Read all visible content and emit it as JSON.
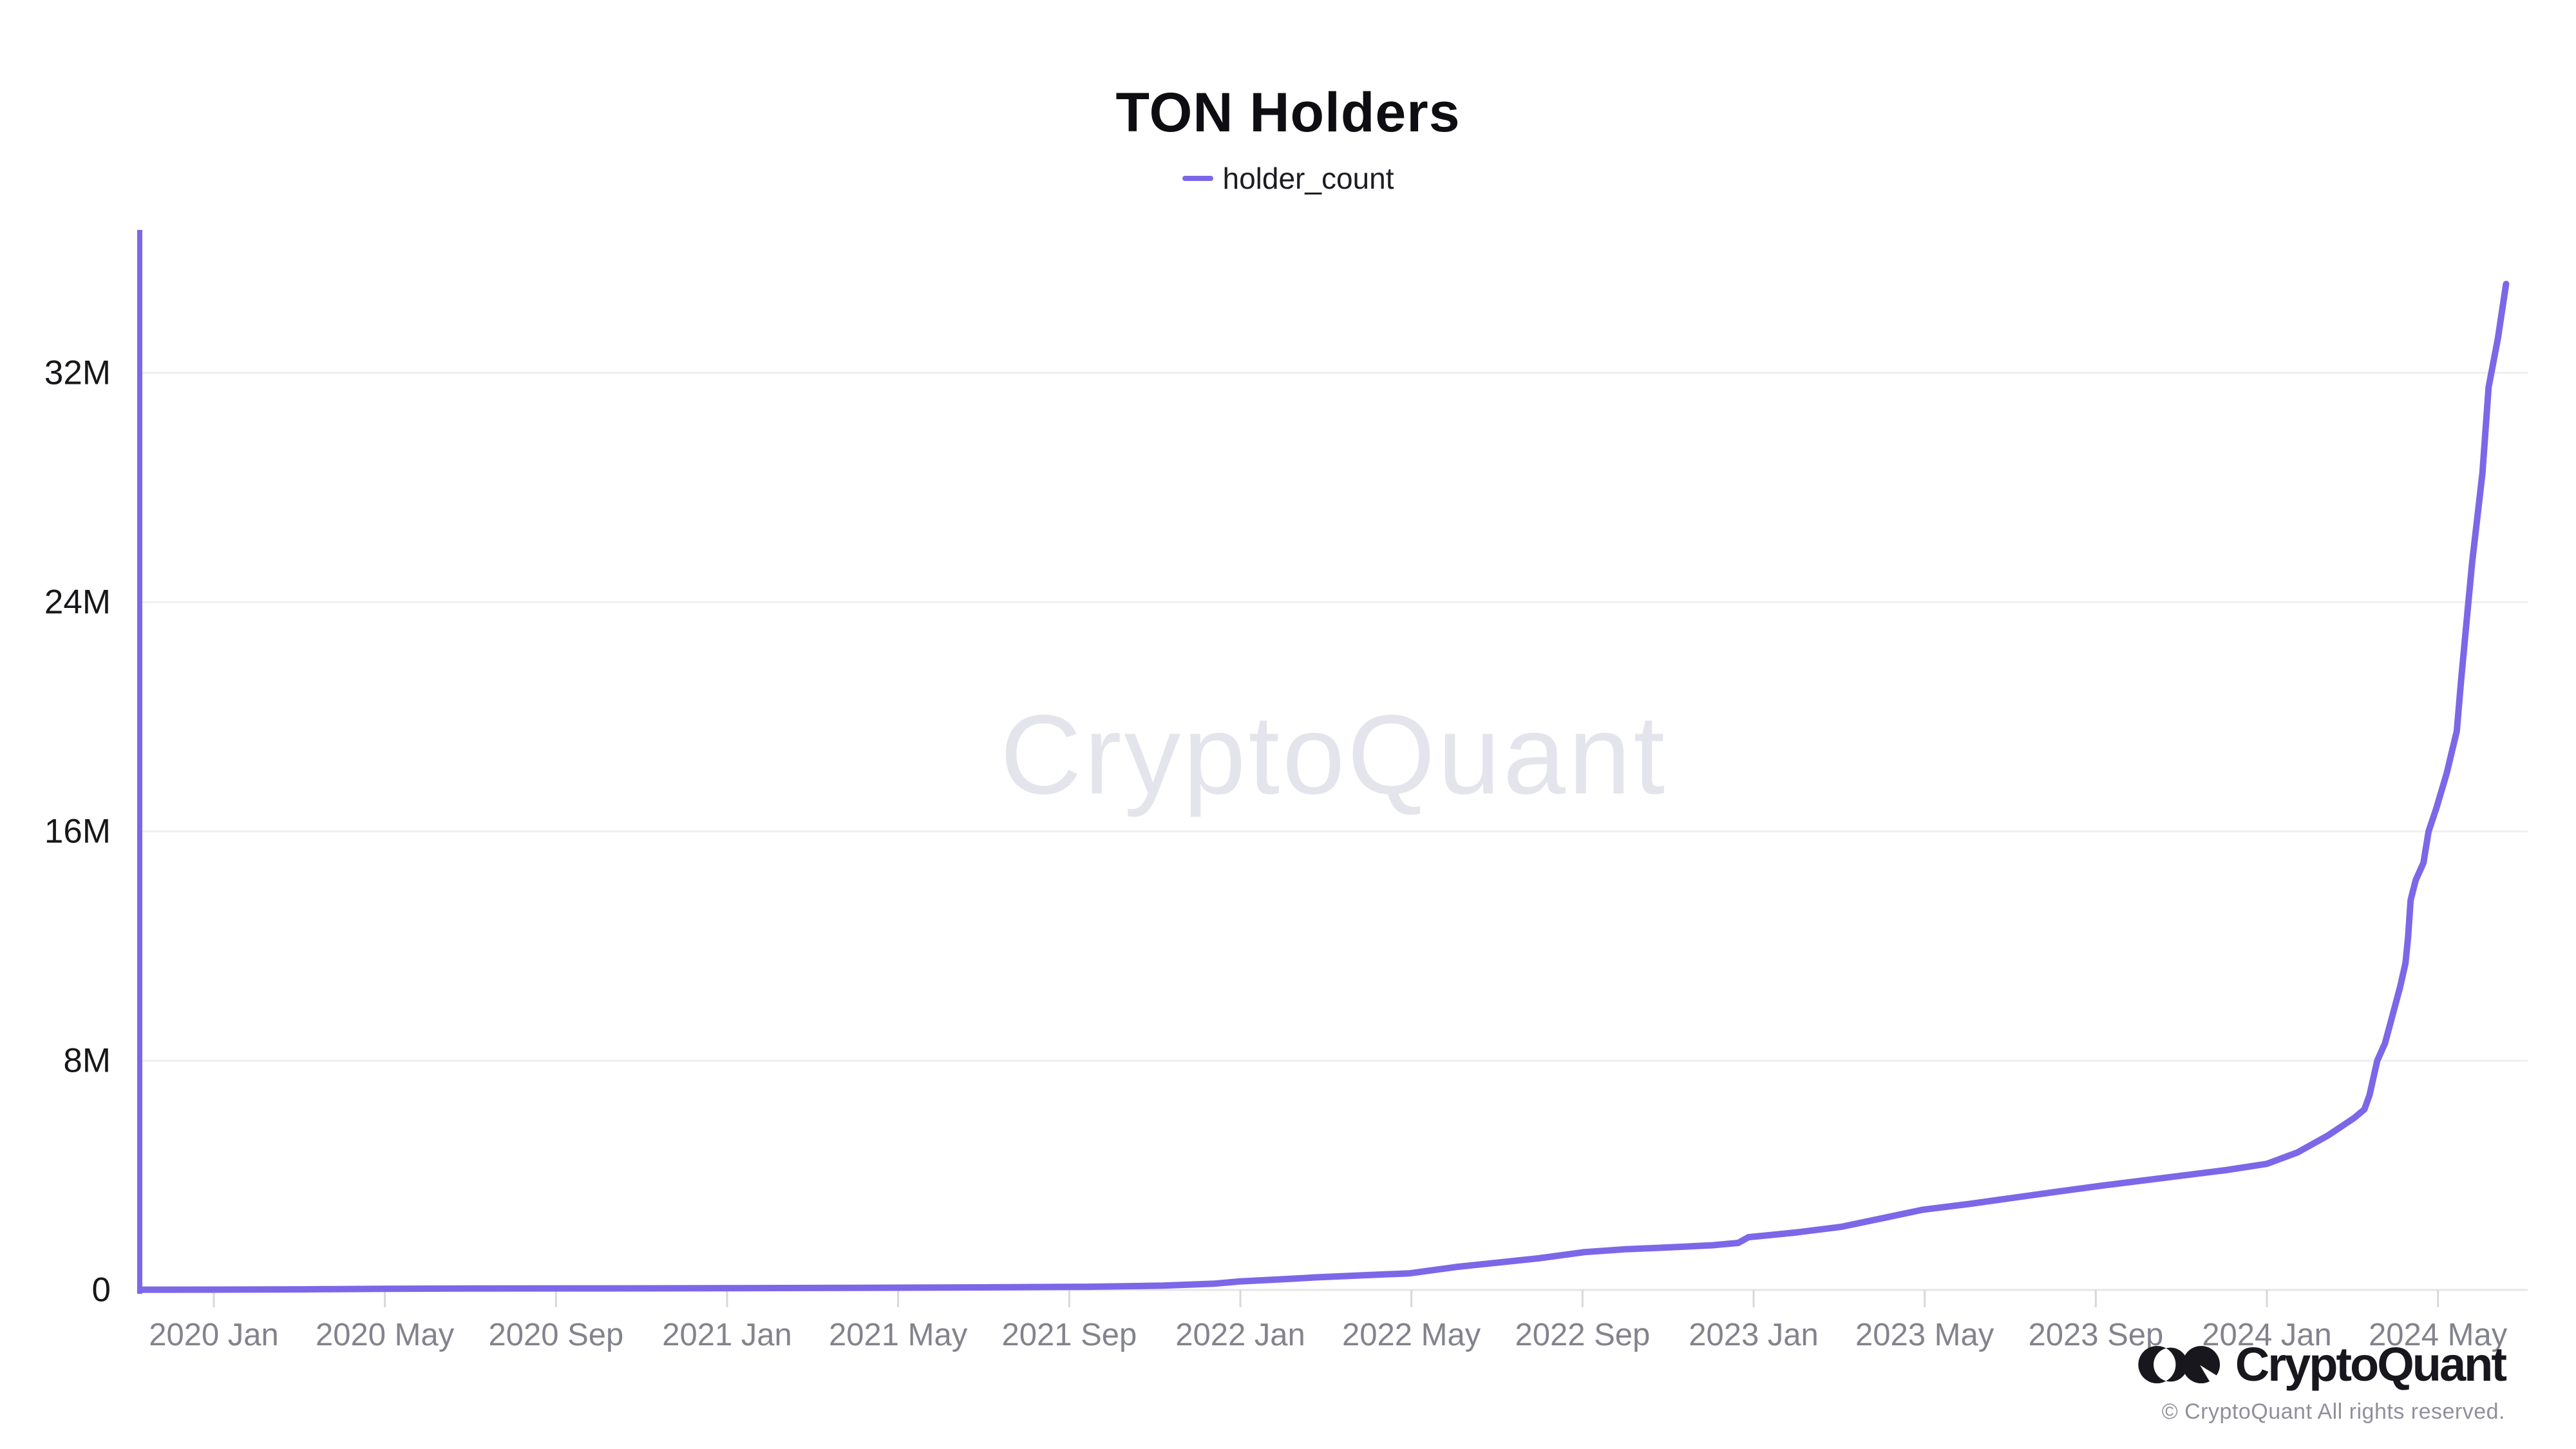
{
  "header": {
    "title": "TON Holders",
    "legend_label": "holder_count"
  },
  "watermark": {
    "text": "CryptoQuant"
  },
  "footer": {
    "brand": "CryptoQuant",
    "copyright": "© CryptoQuant All rights reserved."
  },
  "colors": {
    "series": "#7c67e8",
    "y_axis_line": "#7c67e8",
    "gridline": "#efeff2",
    "baseline": "#e6e6ea",
    "tick": "#d8d8dc",
    "x_label": "#83838d",
    "y_label": "#17171a",
    "watermark": "#e4e4ec"
  },
  "chart_data": {
    "type": "line",
    "title": "TON Holders",
    "series_name": "holder_count",
    "legend_position": "top-center",
    "grid": "horizontal-only",
    "ylabel": "",
    "xlabel": "",
    "y_unit": "holders, millions (M)",
    "ylim_millions": [
      0,
      37
    ],
    "x_range_decimal_years": [
      2019.856,
      2024.55
    ],
    "y_axis": {
      "ticks": [
        {
          "label": "0",
          "value": 0
        },
        {
          "label": "8M",
          "value": 8
        },
        {
          "label": "16M",
          "value": 16
        },
        {
          "label": "24M",
          "value": 24
        },
        {
          "label": "32M",
          "value": 32
        }
      ]
    },
    "x_axis": {
      "ticks": [
        {
          "label": "2020 Jan",
          "year": 2020.0
        },
        {
          "label": "2020 May",
          "year": 2020.3333
        },
        {
          "label": "2020 Sep",
          "year": 2020.6667
        },
        {
          "label": "2021 Jan",
          "year": 2021.0
        },
        {
          "label": "2021 May",
          "year": 2021.3333
        },
        {
          "label": "2021 Sep",
          "year": 2021.6667
        },
        {
          "label": "2022 Jan",
          "year": 2022.0
        },
        {
          "label": "2022 May",
          "year": 2022.3333
        },
        {
          "label": "2022 Sep",
          "year": 2022.6667
        },
        {
          "label": "2023 Jan",
          "year": 2023.0
        },
        {
          "label": "2023 May",
          "year": 2023.3333
        },
        {
          "label": "2023 Sep",
          "year": 2023.6667
        },
        {
          "label": "2024 Jan",
          "year": 2024.0
        },
        {
          "label": "2024 May",
          "year": 2024.3333
        }
      ]
    },
    "points_decimal_year_vs_millions": [
      [
        2019.86,
        0.01
      ],
      [
        2020.0,
        0.012
      ],
      [
        2020.17,
        0.02
      ],
      [
        2020.33,
        0.04
      ],
      [
        2020.5,
        0.05
      ],
      [
        2020.75,
        0.055
      ],
      [
        2021.0,
        0.06
      ],
      [
        2021.25,
        0.075
      ],
      [
        2021.5,
        0.09
      ],
      [
        2021.7,
        0.11
      ],
      [
        2021.85,
        0.15
      ],
      [
        2021.95,
        0.22
      ],
      [
        2022.0,
        0.3
      ],
      [
        2022.08,
        0.37
      ],
      [
        2022.15,
        0.44
      ],
      [
        2022.25,
        0.52
      ],
      [
        2022.33,
        0.58
      ],
      [
        2022.42,
        0.8
      ],
      [
        2022.5,
        0.95
      ],
      [
        2022.58,
        1.1
      ],
      [
        2022.67,
        1.32
      ],
      [
        2022.75,
        1.42
      ],
      [
        2022.83,
        1.48
      ],
      [
        2022.92,
        1.56
      ],
      [
        2022.97,
        1.64
      ],
      [
        2022.99,
        1.84
      ],
      [
        2023.08,
        2.0
      ],
      [
        2023.17,
        2.2
      ],
      [
        2023.25,
        2.5
      ],
      [
        2023.33,
        2.8
      ],
      [
        2023.42,
        3.0
      ],
      [
        2023.5,
        3.2
      ],
      [
        2023.58,
        3.4
      ],
      [
        2023.67,
        3.62
      ],
      [
        2023.75,
        3.8
      ],
      [
        2023.83,
        3.98
      ],
      [
        2023.92,
        4.18
      ],
      [
        2024.0,
        4.4
      ],
      [
        2024.06,
        4.8
      ],
      [
        2024.12,
        5.4
      ],
      [
        2024.17,
        6.0
      ],
      [
        2024.19,
        6.3
      ],
      [
        2024.2,
        6.8
      ],
      [
        2024.21,
        7.6
      ],
      [
        2024.215,
        8.0
      ],
      [
        2024.23,
        8.6
      ],
      [
        2024.245,
        9.6
      ],
      [
        2024.26,
        10.6
      ],
      [
        2024.27,
        11.4
      ],
      [
        2024.275,
        12.3
      ],
      [
        2024.28,
        13.6
      ],
      [
        2024.29,
        14.3
      ],
      [
        2024.305,
        14.9
      ],
      [
        2024.315,
        16.0
      ],
      [
        2024.33,
        16.8
      ],
      [
        2024.35,
        18.0
      ],
      [
        2024.37,
        19.5
      ],
      [
        2024.378,
        21.2
      ],
      [
        2024.39,
        23.5
      ],
      [
        2024.4,
        25.4
      ],
      [
        2024.42,
        28.5
      ],
      [
        2024.432,
        31.5
      ],
      [
        2024.45,
        33.2
      ],
      [
        2024.466,
        35.1
      ]
    ]
  }
}
